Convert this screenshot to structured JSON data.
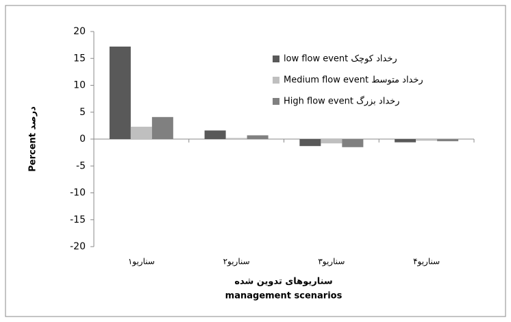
{
  "chart_data": {
    "type": "bar",
    "categories": [
      "سناریو۱",
      "سناریو۲",
      "سناریو۳",
      "سناریو۴"
    ],
    "series": [
      {
        "name": "low flow event  رخداد کوچک",
        "color": "#595959",
        "values": [
          17.2,
          1.6,
          -1.3,
          -0.6
        ]
      },
      {
        "name": "Medium flow event  رخداد متوسط",
        "color": "#bfbfbf",
        "values": [
          2.3,
          0.2,
          -0.8,
          -0.3
        ]
      },
      {
        "name": "High flow event  رخداد بزرگ",
        "color": "#808080",
        "values": [
          4.1,
          0.7,
          -1.5,
          -0.4
        ]
      }
    ],
    "ylim": [
      -20,
      20
    ],
    "yticks": [
      -20,
      -15,
      -10,
      -5,
      0,
      5,
      10,
      15,
      20
    ],
    "y_label": "Percent  درصد",
    "x_label": [
      "سناریوهای تدوین شده",
      "management scenarios"
    ],
    "grid": false
  }
}
